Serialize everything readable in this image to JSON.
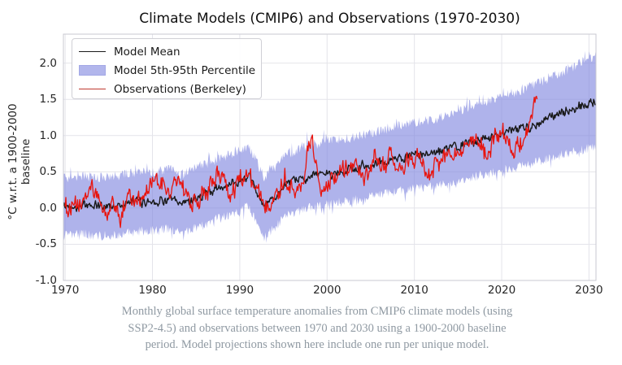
{
  "chart_data": {
    "type": "line",
    "title": "Climate Models (CMIP6) and Observations (1970-2030)",
    "ylabel": "°C w.r.t. a 1900-2000 baseline",
    "xlabel": "",
    "grid": true,
    "xlim": [
      1969.8,
      2030.8
    ],
    "ylim": [
      -1.0,
      2.4
    ],
    "xticks": [
      {
        "v": 1970,
        "label": "1970"
      },
      {
        "v": 1980,
        "label": "1980"
      },
      {
        "v": 1990,
        "label": "1990"
      },
      {
        "v": 2000,
        "label": "2000"
      },
      {
        "v": 2010,
        "label": "2010"
      },
      {
        "v": 2020,
        "label": "2020"
      },
      {
        "v": 2030,
        "label": "2030"
      }
    ],
    "yticks": [
      {
        "v": -1.0,
        "label": "-1.0"
      },
      {
        "v": -0.5,
        "label": "-0.5"
      },
      {
        "v": 0.0,
        "label": "0.0"
      },
      {
        "v": 0.5,
        "label": "0.5"
      },
      {
        "v": 1.0,
        "label": "1.0"
      },
      {
        "v": 1.5,
        "label": "1.5"
      },
      {
        "v": 2.0,
        "label": "2.0"
      }
    ],
    "legend": {
      "position": "upper-left",
      "items": [
        {
          "label": "Model Mean",
          "swatch": "black-line"
        },
        {
          "label": "Model 5th-95th Percentile",
          "swatch": "blue-patch"
        },
        {
          "label": "Observations (Berkeley)",
          "swatch": "red-line"
        }
      ]
    },
    "series": [
      {
        "name": "Model Mean",
        "kind": "line",
        "color": "#1a1a1a",
        "x_start": 1969.8,
        "x_end": 2030.8,
        "step_years": 0.0833,
        "trend_anchors": [
          [
            1969.8,
            0.02
          ],
          [
            1972,
            0.04
          ],
          [
            1974,
            0.02
          ],
          [
            1976,
            0.04
          ],
          [
            1978,
            0.08
          ],
          [
            1980,
            0.1
          ],
          [
            1982,
            0.12
          ],
          [
            1983.3,
            0.05
          ],
          [
            1985,
            0.15
          ],
          [
            1987,
            0.24
          ],
          [
            1989,
            0.33
          ],
          [
            1990.8,
            0.43
          ],
          [
            1991.6,
            0.32
          ],
          [
            1992.7,
            0.01
          ],
          [
            1993.5,
            0.08
          ],
          [
            1995,
            0.28
          ],
          [
            1997,
            0.41
          ],
          [
            1999,
            0.46
          ],
          [
            2001,
            0.5
          ],
          [
            2003,
            0.54
          ],
          [
            2005,
            0.59
          ],
          [
            2007,
            0.65
          ],
          [
            2009,
            0.7
          ],
          [
            2011,
            0.74
          ],
          [
            2013,
            0.78
          ],
          [
            2015,
            0.85
          ],
          [
            2017,
            0.93
          ],
          [
            2019,
            1.0
          ],
          [
            2021,
            1.06
          ],
          [
            2023,
            1.13
          ],
          [
            2025,
            1.22
          ],
          [
            2027,
            1.31
          ],
          [
            2029,
            1.4
          ],
          [
            2030.8,
            1.47
          ]
        ],
        "noise": {
          "seed": 42,
          "ar": 0.5,
          "ar_amp": 0.05,
          "jitter": 0.022
        }
      },
      {
        "name": "Model 5th-95th Percentile",
        "kind": "band",
        "color": "#7e85de",
        "fill_opacity": 0.62,
        "x_start": 1969.8,
        "x_end": 2030.8,
        "step_years": 0.0833,
        "center_anchors": [
          [
            1969.8,
            0.02
          ],
          [
            1972,
            0.04
          ],
          [
            1974,
            0.02
          ],
          [
            1976,
            0.04
          ],
          [
            1978,
            0.08
          ],
          [
            1980,
            0.1
          ],
          [
            1982,
            0.12
          ],
          [
            1983.3,
            0.05
          ],
          [
            1985,
            0.15
          ],
          [
            1987,
            0.24
          ],
          [
            1989,
            0.33
          ],
          [
            1990.8,
            0.43
          ],
          [
            1991.6,
            0.32
          ],
          [
            1992.7,
            0.01
          ],
          [
            1993.5,
            0.08
          ],
          [
            1995,
            0.28
          ],
          [
            1997,
            0.41
          ],
          [
            1999,
            0.46
          ],
          [
            2001,
            0.5
          ],
          [
            2003,
            0.54
          ],
          [
            2005,
            0.59
          ],
          [
            2007,
            0.65
          ],
          [
            2009,
            0.7
          ],
          [
            2011,
            0.74
          ],
          [
            2013,
            0.78
          ],
          [
            2015,
            0.85
          ],
          [
            2017,
            0.93
          ],
          [
            2019,
            1.0
          ],
          [
            2021,
            1.06
          ],
          [
            2023,
            1.13
          ],
          [
            2025,
            1.22
          ],
          [
            2027,
            1.31
          ],
          [
            2029,
            1.4
          ],
          [
            2030.8,
            1.47
          ]
        ],
        "halfwidth_anchors": [
          [
            1969.8,
            0.4
          ],
          [
            1985,
            0.41
          ],
          [
            1995,
            0.42
          ],
          [
            2005,
            0.44
          ],
          [
            2012,
            0.46
          ],
          [
            2018,
            0.5
          ],
          [
            2023,
            0.53
          ],
          [
            2027,
            0.57
          ],
          [
            2030.8,
            0.63
          ]
        ],
        "noise": {
          "seed": 77,
          "jitter": 0.07,
          "spike_p": 0.08,
          "spike_amp": 0.14
        }
      },
      {
        "name": "Observations (Berkeley)",
        "kind": "line",
        "color": "#e8150f",
        "x_start": 1970.0,
        "x_end": 2024.1,
        "step_years": 0.0833,
        "trend_anchors": [
          [
            1970.0,
            0.08
          ],
          [
            1970.7,
            -0.05
          ],
          [
            1971.5,
            0.0
          ],
          [
            1972.3,
            0.12
          ],
          [
            1973.1,
            0.32
          ],
          [
            1973.8,
            0.1
          ],
          [
            1974.6,
            -0.1
          ],
          [
            1975.5,
            0.05
          ],
          [
            1976.3,
            -0.15
          ],
          [
            1977.2,
            0.22
          ],
          [
            1978.0,
            0.1
          ],
          [
            1979.0,
            0.22
          ],
          [
            1980.0,
            0.3
          ],
          [
            1981.0,
            0.35
          ],
          [
            1982.0,
            0.18
          ],
          [
            1983.2,
            0.42
          ],
          [
            1984.0,
            0.12
          ],
          [
            1985.0,
            0.08
          ],
          [
            1986.0,
            0.2
          ],
          [
            1987.2,
            0.38
          ],
          [
            1988.2,
            0.45
          ],
          [
            1989.0,
            0.22
          ],
          [
            1990.0,
            0.42
          ],
          [
            1991.0,
            0.42
          ],
          [
            1991.8,
            0.2
          ],
          [
            1992.6,
            0.05
          ],
          [
            1993.5,
            0.15
          ],
          [
            1994.5,
            0.28
          ],
          [
            1995.3,
            0.42
          ],
          [
            1996.2,
            0.3
          ],
          [
            1997.2,
            0.42
          ],
          [
            1998.2,
            0.95
          ],
          [
            1999.0,
            0.42
          ],
          [
            2000.0,
            0.35
          ],
          [
            2001.0,
            0.5
          ],
          [
            2002.0,
            0.58
          ],
          [
            2003.0,
            0.58
          ],
          [
            2004.0,
            0.52
          ],
          [
            2004.6,
            0.35
          ],
          [
            2005.5,
            0.65
          ],
          [
            2006.5,
            0.6
          ],
          [
            2007.2,
            0.68
          ],
          [
            2008.2,
            0.42
          ],
          [
            2009.2,
            0.62
          ],
          [
            2010.2,
            0.72
          ],
          [
            2011.0,
            0.5
          ],
          [
            2012.0,
            0.58
          ],
          [
            2013.0,
            0.65
          ],
          [
            2014.0,
            0.7
          ],
          [
            2015.0,
            0.82
          ],
          [
            2016.2,
            1.08
          ],
          [
            2017.0,
            0.88
          ],
          [
            2018.0,
            0.75
          ],
          [
            2019.2,
            0.92
          ],
          [
            2020.2,
            0.98
          ],
          [
            2021.0,
            0.78
          ],
          [
            2021.8,
            0.85
          ],
          [
            2022.5,
            0.82
          ],
          [
            2023.0,
            0.95
          ],
          [
            2023.5,
            1.1
          ],
          [
            2023.9,
            1.55
          ],
          [
            2024.1,
            1.35
          ]
        ],
        "noise": {
          "seed": 1234,
          "ar": 0.65,
          "ar_amp": 0.1,
          "jitter": 0.06
        }
      }
    ]
  },
  "caption": {
    "line1": "Monthly global surface temperature anomalies from CMIP6 climate models (using",
    "line2": "SSP2-4.5) and observations between 1970 and 2030 using a 1900-2000 baseline",
    "line3": "period. Model projections shown here include one run per unique model."
  },
  "colors": {
    "band_fill": "#7e85de",
    "band_rendered": "#b2b6ec",
    "model_mean": "#1a1a1a",
    "observations": "#e8150f",
    "grid": "#e4e4ea",
    "spine": "#c9c9d1",
    "tick_text": "#262626",
    "title_text": "#111111",
    "caption_text": "#8f99a2",
    "legend_border": "#d0d0d6",
    "background": "#ffffff"
  }
}
